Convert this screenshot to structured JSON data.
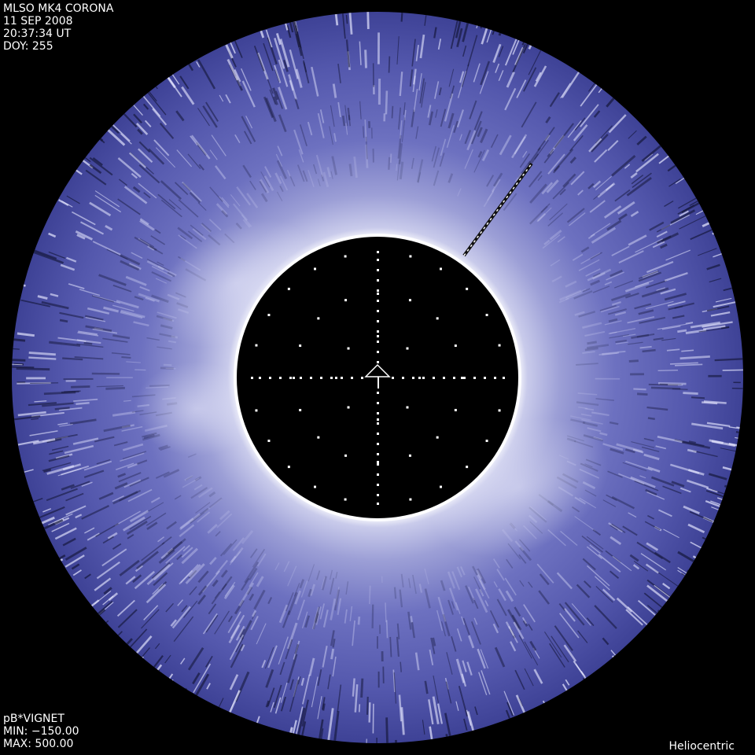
{
  "header": {
    "title": "MLSO MK4 CORONA",
    "date": "11 SEP 2008",
    "time": "20:37:34 UT",
    "doy": "DOY: 255"
  },
  "footer": {
    "product": "pB*VIGNET",
    "min": "MIN: −150.00",
    "max": "MAX: 500.00",
    "coords": "Heliocentric"
  },
  "colors": {
    "corona": "#5a5fb0",
    "corona_bright": "#d8d9f2",
    "background": "#000000"
  },
  "icons": [
    "north-arrow-icon"
  ]
}
